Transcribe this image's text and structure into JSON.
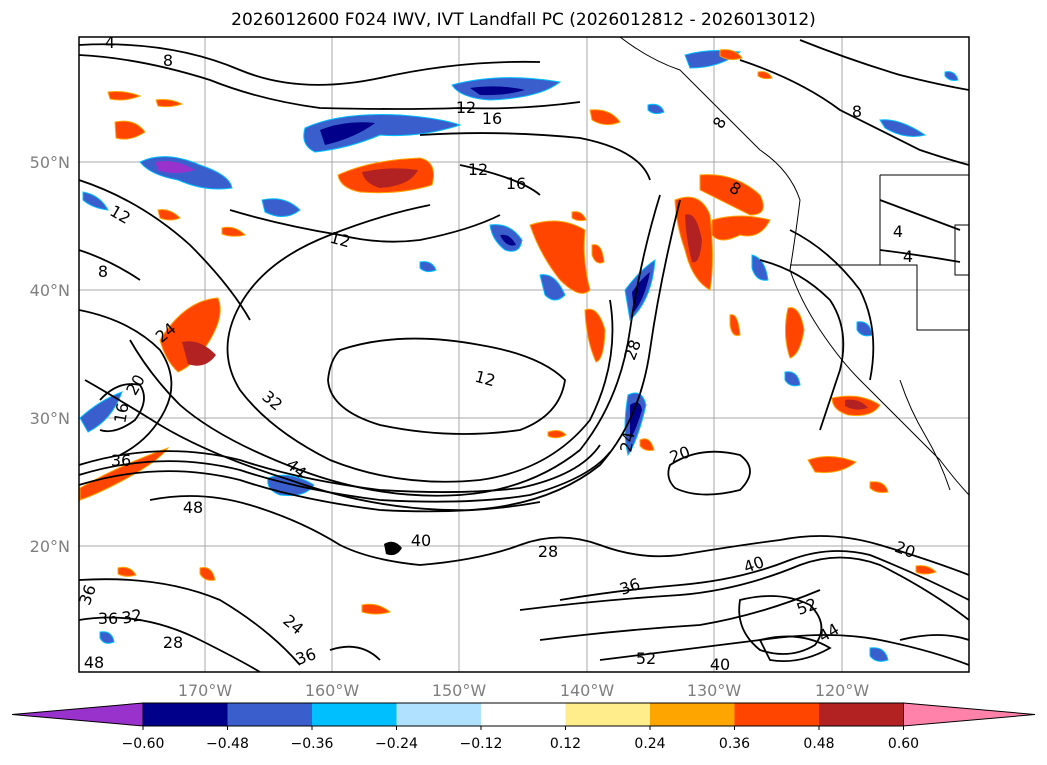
{
  "title": "2026012600 F024 IWV, IVT Landfall PC (2026012812 - 2026013012)",
  "lat_labels": [
    "50°N",
    "40°N",
    "30°N",
    "20°N"
  ],
  "lon_labels": [
    "170°W",
    "160°W",
    "150°W",
    "140°W",
    "130°W",
    "120°W"
  ],
  "colorbar": {
    "ticks": [
      "−0.60",
      "−0.48",
      "−0.36",
      "−0.24",
      "−0.12",
      "0.12",
      "0.24",
      "0.36",
      "0.48",
      "0.60"
    ],
    "colors": [
      "#9932cc",
      "#00008b",
      "#3a5fcd",
      "#00bfff",
      "#b0e2ff",
      "#ffffff",
      "#ffec8b",
      "#ffa500",
      "#ff4500",
      "#b22222",
      "#ff82ab"
    ]
  },
  "contour_labels": [
    "4",
    "8",
    "12",
    "16",
    "12",
    "16",
    "8",
    "8",
    "12",
    "8",
    "12",
    "4",
    "4",
    "8",
    "24",
    "20",
    "16",
    "32",
    "12",
    "28",
    "24",
    "36",
    "44",
    "48",
    "20",
    "40",
    "28",
    "36",
    "40",
    "52",
    "44",
    "20",
    "36",
    "32",
    "36",
    "28",
    "24",
    "36",
    "48",
    "52",
    "40"
  ]
}
